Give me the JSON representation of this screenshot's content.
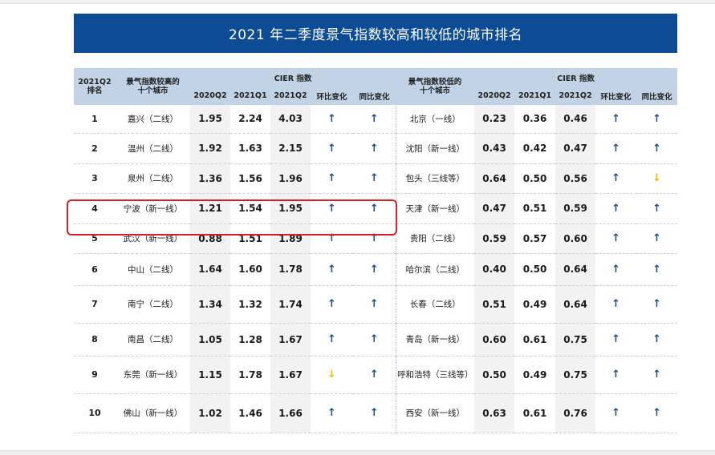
{
  "title": "2021 年二季度景气指数较高和较低的城市排名",
  "headers": {
    "rank": "2021Q2\n排名",
    "high_city": "景气指数较高的\n十个城市",
    "low_city": "景气指数较低的\n十个城市",
    "cier": "CIER 指数",
    "q2020": "2020Q2",
    "q2021_1": "2021Q1",
    "q2021_2": "2021Q2",
    "hb": "环比变化",
    "tb": "同比变化"
  },
  "rows": [
    {
      "rank": "1",
      "high_city": "嘉兴（二线）",
      "h1": "1.95",
      "h2": "2.24",
      "h3": "4.03",
      "hhb": "up",
      "htb": "up",
      "low_city": "北京（一线）",
      "l1": "0.23",
      "l2": "0.36",
      "l3": "0.46",
      "lhb": "up",
      "ltb": "up"
    },
    {
      "rank": "2",
      "high_city": "温州（二线）",
      "h1": "1.92",
      "h2": "1.63",
      "h3": "2.15",
      "hhb": "up",
      "htb": "up",
      "low_city": "沈阳（新一线）",
      "l1": "0.43",
      "l2": "0.42",
      "l3": "0.47",
      "lhb": "up",
      "ltb": "up"
    },
    {
      "rank": "3",
      "high_city": "泉州（二线）",
      "h1": "1.36",
      "h2": "1.56",
      "h3": "1.96",
      "hhb": "up",
      "htb": "up",
      "low_city": "包头（三线等）",
      "l1": "0.64",
      "l2": "0.50",
      "l3": "0.56",
      "lhb": "up",
      "ltb": "down"
    },
    {
      "rank": "4",
      "high_city": "宁波（新一线）",
      "h1": "1.21",
      "h2": "1.54",
      "h3": "1.95",
      "hhb": "up",
      "htb": "up",
      "low_city": "天津（新一线）",
      "l1": "0.47",
      "l2": "0.51",
      "l3": "0.59",
      "lhb": "up",
      "ltb": "up"
    },
    {
      "rank": "5",
      "high_city": "武汉（新一线）",
      "h1": "0.88",
      "h2": "1.51",
      "h3": "1.89",
      "hhb": "up",
      "htb": "up",
      "low_city": "贵阳（二线）",
      "l1": "0.59",
      "l2": "0.57",
      "l3": "0.60",
      "lhb": "up",
      "ltb": "up"
    },
    {
      "rank": "6",
      "high_city": "中山（二线）",
      "h1": "1.64",
      "h2": "1.60",
      "h3": "1.78",
      "hhb": "up",
      "htb": "up",
      "low_city": "哈尔滨（二线）",
      "l1": "0.40",
      "l2": "0.50",
      "l3": "0.64",
      "lhb": "up",
      "ltb": "up"
    },
    {
      "rank": "7",
      "high_city": "南宁（二线）",
      "h1": "1.34",
      "h2": "1.32",
      "h3": "1.74",
      "hhb": "up",
      "htb": "up",
      "low_city": "长春（二线）",
      "l1": "0.51",
      "l2": "0.49",
      "l3": "0.64",
      "lhb": "up",
      "ltb": "up"
    },
    {
      "rank": "8",
      "high_city": "南昌（二线）",
      "h1": "1.05",
      "h2": "1.28",
      "h3": "1.67",
      "hhb": "up",
      "htb": "up",
      "low_city": "青岛（新一线）",
      "l1": "0.60",
      "l2": "0.61",
      "l3": "0.75",
      "lhb": "up",
      "ltb": "up"
    },
    {
      "rank": "9",
      "high_city": "东莞（新一线）",
      "h1": "1.15",
      "h2": "1.78",
      "h3": "1.67",
      "hhb": "down",
      "htb": "up",
      "low_city": "呼和浩特（三线等）",
      "l1": "0.50",
      "l2": "0.49",
      "l3": "0.75",
      "lhb": "up",
      "ltb": "up"
    },
    {
      "rank": "10",
      "high_city": "佛山（新一线）",
      "h1": "1.02",
      "h2": "1.46",
      "h3": "1.66",
      "hhb": "up",
      "htb": "up",
      "low_city": "西安（新一线）",
      "l1": "0.63",
      "l2": "0.61",
      "l3": "0.76",
      "lhb": "up",
      "ltb": "up"
    }
  ],
  "arrows": {
    "up": "🡑",
    "down": "🡓"
  },
  "colors": {
    "banner": "#0d4c94",
    "header": "#c3d3e6",
    "up": "#1b4a8c",
    "down": "#f4b800",
    "highlight": "#d91e25"
  },
  "highlighted_row": "4"
}
